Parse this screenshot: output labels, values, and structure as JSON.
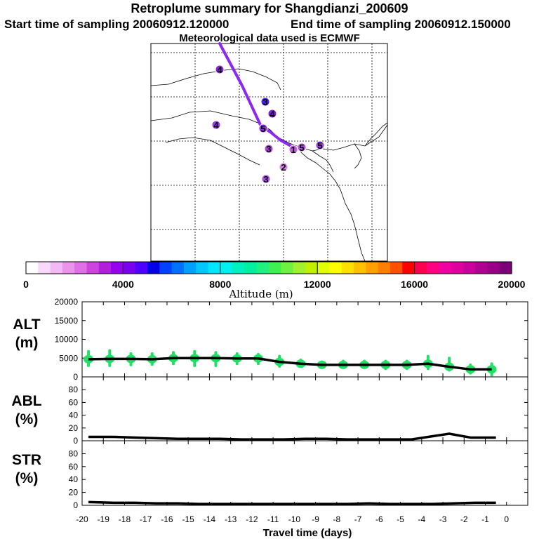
{
  "header": {
    "title": "Retroplume summary for Shangdianzi_200609",
    "start": "Start time of sampling 20060912.120000",
    "end": "End time of sampling 20060912.150000",
    "met": "Meteorological data used is ECMWF"
  },
  "colorbar": {
    "label": "Altitude (m)",
    "ticks": [
      "0",
      "4000",
      "8000",
      "12000",
      "16000",
      "20000"
    ],
    "colors": [
      "#ffffff",
      "#f9d9f9",
      "#f4b8f4",
      "#ec94ec",
      "#e070e6",
      "#cc44dd",
      "#b11edc",
      "#9400f0",
      "#7a00f0",
      "#5000ff",
      "#0000e6",
      "#0040ff",
      "#0070ff",
      "#00a0ff",
      "#00c8ff",
      "#00e6ff",
      "#00f0f0",
      "#00f0c0",
      "#00f0a0",
      "#20f080",
      "#40f050",
      "#70f040",
      "#a0f030",
      "#c0f000",
      "#e0ff00",
      "#ffff00",
      "#ffe000",
      "#ffc000",
      "#ffa000",
      "#ff8000",
      "#ff5000",
      "#ff0000",
      "#ff0050",
      "#ff0080",
      "#f000a0",
      "#e000a0",
      "#c8009e",
      "#b00094",
      "#980088",
      "#7d0078"
    ]
  },
  "map": {
    "track_color": "#8c28f0",
    "markers": [
      {
        "label": "4",
        "color": "#8c22dc"
      },
      {
        "label": "3",
        "color": "#4b20ee"
      },
      {
        "label": "4",
        "color": "#7f1ed8"
      },
      {
        "label": "4",
        "color": "#9a36ea"
      },
      {
        "label": "5",
        "color": "#8c30e4"
      },
      {
        "label": "3",
        "color": "#b040e6"
      },
      {
        "label": "5",
        "color": "#b04ee8"
      },
      {
        "label": "1",
        "color": "#c45ae6"
      },
      {
        "label": "3",
        "color": "#b04ee8"
      },
      {
        "label": "2",
        "color": "#d884e6"
      },
      {
        "label": "5",
        "color": "#9a3be4"
      }
    ]
  },
  "chart_data": [
    {
      "type": "line",
      "name": "ALT",
      "ylabel": [
        "ALT",
        "(m)"
      ],
      "ylim": [
        0,
        20000
      ],
      "yticks": [
        "0",
        "5000",
        "10000",
        "15000",
        "20000"
      ],
      "x": [
        -19.7,
        -18.7,
        -17.7,
        -16.7,
        -15.7,
        -14.7,
        -13.7,
        -12.7,
        -11.7,
        -10.7,
        -9.7,
        -8.7,
        -7.7,
        -6.7,
        -5.7,
        -4.7,
        -3.7,
        -2.7,
        -1.7,
        -0.7
      ],
      "values": [
        4700,
        4800,
        4800,
        4700,
        5000,
        5000,
        5000,
        4900,
        4900,
        4000,
        3500,
        3200,
        3200,
        3200,
        3200,
        3200,
        3500,
        2700,
        2000,
        2000
      ],
      "spread_min": [
        3000,
        3000,
        3200,
        3300,
        3500,
        3000,
        3000,
        3500,
        3500,
        2800,
        2800,
        2500,
        2500,
        2500,
        2200,
        2200,
        2200,
        1800,
        1000,
        500
      ],
      "spread_max": [
        6800,
        7000,
        6200,
        6200,
        6500,
        6800,
        6500,
        6200,
        6000,
        5500,
        4500,
        4000,
        4200,
        4200,
        4200,
        4200,
        5500,
        5000,
        3200,
        3500
      ],
      "spread_color": "#22e066"
    },
    {
      "type": "line",
      "name": "ABL",
      "ylabel": [
        "ABL",
        "(%)"
      ],
      "ylim": [
        0,
        100
      ],
      "yticks": [
        "0",
        "20",
        "40",
        "60",
        "80"
      ],
      "x": [
        -19.7,
        -18.5,
        -17.5,
        -16.5,
        -15.5,
        -14.5,
        -13.5,
        -12.5,
        -11.5,
        -10.5,
        -9.5,
        -8.5,
        -7.5,
        -6.5,
        -5.5,
        -4.5,
        -3.5,
        -2.7,
        -1.7,
        -0.5
      ],
      "values": [
        6,
        6,
        5,
        4,
        3,
        3,
        3,
        2,
        2,
        2,
        3,
        3,
        2,
        2,
        2,
        2,
        7,
        11,
        5,
        5
      ]
    },
    {
      "type": "line",
      "name": "STR",
      "ylabel": [
        "STR",
        "(%)"
      ],
      "ylim": [
        0,
        100
      ],
      "yticks": [
        "0",
        "20",
        "40",
        "60",
        "80"
      ],
      "xlabel": "Travel time (days)",
      "xticks": [
        "-20",
        "-19",
        "-18",
        "-17",
        "-16",
        "-15",
        "-14",
        "-13",
        "-12",
        "-11",
        "-10",
        "-9",
        "-8",
        "-7",
        "-6",
        "-5",
        "-4",
        "-3",
        "-2",
        "-1",
        "0"
      ],
      "x": [
        -19.7,
        -18.5,
        -17.5,
        -16.5,
        -15.5,
        -14.5,
        -13.5,
        -12.5,
        -11.5,
        -10.5,
        -9.5,
        -8.5,
        -7.5,
        -6.5,
        -5.5,
        -4.5,
        -3.5,
        -2.5,
        -1.5,
        -0.5
      ],
      "values": [
        5,
        4,
        4,
        3,
        3,
        2,
        2,
        2,
        2,
        2,
        2,
        2,
        2,
        3,
        2,
        2,
        2,
        3,
        4,
        4
      ]
    }
  ]
}
